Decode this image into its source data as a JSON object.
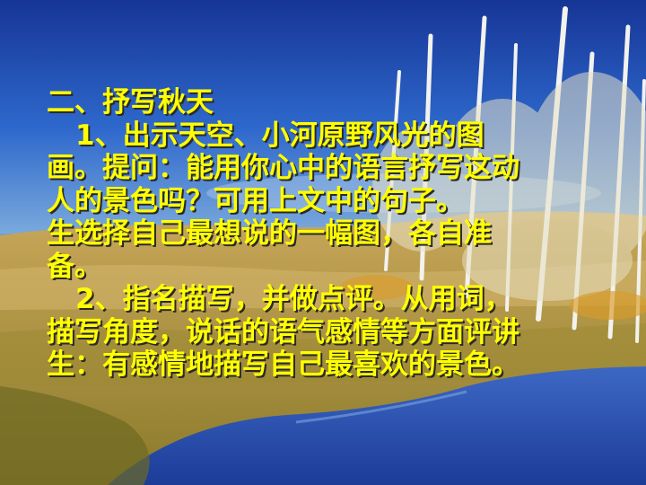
{
  "slide": {
    "heading": "二、抒写秋天",
    "para1_line1": "1、出示天空、小河原野风光的图",
    "para1_line2": "画。提问：能用你心中的语言抒写这动",
    "para1_line3": "人的景色吗？可用上文中的句子。",
    "para1_line4": "生选择自己最想说的一幅图，各自准",
    "para1_line5": "备。",
    "para2_line1": "2、指名描写，并做点评。从用词，",
    "para2_line2": "描写角度，说话的语气感情等方面评讲",
    "para2_line3": "生：有感情地描写自己最喜欢的景色。"
  },
  "colors": {
    "text": "#ffff00",
    "sky_top": "#1a3a9a",
    "grass": "#b89a3c",
    "water": "#2a4fb0"
  }
}
